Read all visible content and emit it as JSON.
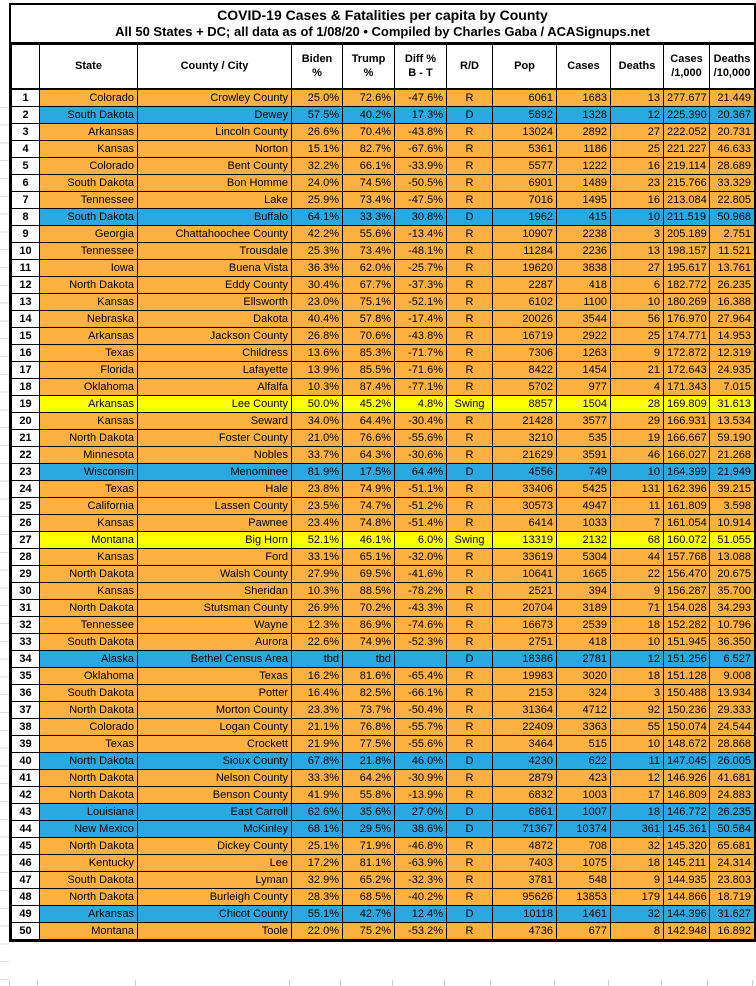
{
  "title": "COVID-19 Cases & Fatalities per capita by County",
  "subtitle": "All 50 States + DC; all data as of 1/08/20  • Compiled by Charles Gaba / ACASignups.net",
  "colors": {
    "republican": "#FBB040",
    "democrat": "#2AA9E0",
    "swing": "#FFFF00",
    "border": "#000000",
    "page": "#FFFFFF"
  },
  "columns": [
    {
      "id": "rank",
      "lines": [
        ""
      ]
    },
    {
      "id": "state",
      "lines": [
        "State"
      ]
    },
    {
      "id": "county",
      "lines": [
        "County / City"
      ]
    },
    {
      "id": "biden",
      "lines": [
        "Biden",
        "%"
      ]
    },
    {
      "id": "trump",
      "lines": [
        "Trump",
        "%"
      ]
    },
    {
      "id": "diff",
      "lines": [
        "Diff %",
        "B - T"
      ]
    },
    {
      "id": "rd",
      "lines": [
        "R/D"
      ]
    },
    {
      "id": "pop",
      "lines": [
        "Pop"
      ]
    },
    {
      "id": "cases",
      "lines": [
        "Cases"
      ]
    },
    {
      "id": "deaths",
      "lines": [
        "Deaths"
      ]
    },
    {
      "id": "c1000",
      "lines": [
        "Cases",
        "/1,000"
      ]
    },
    {
      "id": "d10000",
      "lines": [
        "Deaths",
        "/10,000"
      ]
    }
  ],
  "row_fields": [
    "rank",
    "state",
    "county_city",
    "biden_pct",
    "trump_pct",
    "diff_pct_b_t",
    "r_d",
    "pop",
    "cases",
    "deaths",
    "cases_per_1000",
    "deaths_per_10000"
  ],
  "rows": [
    [
      1,
      "Colorado",
      "Crowley County",
      "25.0%",
      "72.6%",
      "-47.6%",
      "R",
      "6061",
      "1683",
      "13",
      "277.677",
      "21.449"
    ],
    [
      2,
      "South Dakota",
      "Dewey",
      "57.5%",
      "40.2%",
      "17.3%",
      "D",
      "5892",
      "1328",
      "12",
      "225.390",
      "20.367"
    ],
    [
      3,
      "Arkansas",
      "Lincoln County",
      "26.6%",
      "70.4%",
      "-43.8%",
      "R",
      "13024",
      "2892",
      "27",
      "222.052",
      "20.731"
    ],
    [
      4,
      "Kansas",
      "Norton",
      "15.1%",
      "82.7%",
      "-67.6%",
      "R",
      "5361",
      "1186",
      "25",
      "221.227",
      "46.633"
    ],
    [
      5,
      "Colorado",
      "Bent County",
      "32.2%",
      "66.1%",
      "-33.9%",
      "R",
      "5577",
      "1222",
      "16",
      "219.114",
      "28.689"
    ],
    [
      6,
      "South Dakota",
      "Bon Homme",
      "24.0%",
      "74.5%",
      "-50.5%",
      "R",
      "6901",
      "1489",
      "23",
      "215.766",
      "33.329"
    ],
    [
      7,
      "Tennessee",
      "Lake",
      "25.9%",
      "73.4%",
      "-47.5%",
      "R",
      "7016",
      "1495",
      "16",
      "213.084",
      "22.805"
    ],
    [
      8,
      "South Dakota",
      "Buffalo",
      "64.1%",
      "33.3%",
      "30.8%",
      "D",
      "1962",
      "415",
      "10",
      "211.519",
      "50.968"
    ],
    [
      9,
      "Georgia",
      "Chattahoochee County",
      "42.2%",
      "55.6%",
      "-13.4%",
      "R",
      "10907",
      "2238",
      "3",
      "205.189",
      "2.751"
    ],
    [
      10,
      "Tennessee",
      "Trousdale",
      "25.3%",
      "73.4%",
      "-48.1%",
      "R",
      "11284",
      "2236",
      "13",
      "198.157",
      "11.521"
    ],
    [
      11,
      "Iowa",
      "Buena Vista",
      "36.3%",
      "62.0%",
      "-25.7%",
      "R",
      "19620",
      "3838",
      "27",
      "195.617",
      "13.761"
    ],
    [
      12,
      "North Dakota",
      "Eddy County",
      "30.4%",
      "67.7%",
      "-37.3%",
      "R",
      "2287",
      "418",
      "6",
      "182.772",
      "26.235"
    ],
    [
      13,
      "Kansas",
      "Ellsworth",
      "23.0%",
      "75.1%",
      "-52.1%",
      "R",
      "6102",
      "1100",
      "10",
      "180.269",
      "16.388"
    ],
    [
      14,
      "Nebraska",
      "Dakota",
      "40.4%",
      "57.8%",
      "-17.4%",
      "R",
      "20026",
      "3544",
      "56",
      "176.970",
      "27.964"
    ],
    [
      15,
      "Arkansas",
      "Jackson County",
      "26.8%",
      "70.6%",
      "-43.8%",
      "R",
      "16719",
      "2922",
      "25",
      "174.771",
      "14.953"
    ],
    [
      16,
      "Texas",
      "Childress",
      "13.6%",
      "85.3%",
      "-71.7%",
      "R",
      "7306",
      "1263",
      "9",
      "172.872",
      "12.319"
    ],
    [
      17,
      "Florida",
      "Lafayette",
      "13.9%",
      "85.5%",
      "-71.6%",
      "R",
      "8422",
      "1454",
      "21",
      "172.643",
      "24.935"
    ],
    [
      18,
      "Oklahoma",
      "Alfalfa",
      "10.3%",
      "87.4%",
      "-77.1%",
      "R",
      "5702",
      "977",
      "4",
      "171.343",
      "7.015"
    ],
    [
      19,
      "Arkansas",
      "Lee County",
      "50.0%",
      "45.2%",
      "4.8%",
      "Swing",
      "8857",
      "1504",
      "28",
      "169.809",
      "31.613"
    ],
    [
      20,
      "Kansas",
      "Seward",
      "34.0%",
      "64.4%",
      "-30.4%",
      "R",
      "21428",
      "3577",
      "29",
      "166.931",
      "13.534"
    ],
    [
      21,
      "North Dakota",
      "Foster County",
      "21.0%",
      "76.6%",
      "-55.6%",
      "R",
      "3210",
      "535",
      "19",
      "166.667",
      "59.190"
    ],
    [
      22,
      "Minnesota",
      "Nobles",
      "33.7%",
      "64.3%",
      "-30.6%",
      "R",
      "21629",
      "3591",
      "46",
      "166.027",
      "21.268"
    ],
    [
      23,
      "Wisconsin",
      "Menominee",
      "81.9%",
      "17.5%",
      "64.4%",
      "D",
      "4556",
      "749",
      "10",
      "164.399",
      "21.949"
    ],
    [
      24,
      "Texas",
      "Hale",
      "23.8%",
      "74.9%",
      "-51.1%",
      "R",
      "33406",
      "5425",
      "131",
      "162.396",
      "39.215"
    ],
    [
      25,
      "California",
      "Lassen County",
      "23.5%",
      "74.7%",
      "-51.2%",
      "R",
      "30573",
      "4947",
      "11",
      "161.809",
      "3.598"
    ],
    [
      26,
      "Kansas",
      "Pawnee",
      "23.4%",
      "74.8%",
      "-51.4%",
      "R",
      "6414",
      "1033",
      "7",
      "161.054",
      "10.914"
    ],
    [
      27,
      "Montana",
      "Big Horn",
      "52.1%",
      "46.1%",
      "6.0%",
      "Swing",
      "13319",
      "2132",
      "68",
      "160.072",
      "51.055"
    ],
    [
      28,
      "Kansas",
      "Ford",
      "33.1%",
      "65.1%",
      "-32.0%",
      "R",
      "33619",
      "5304",
      "44",
      "157.768",
      "13.088"
    ],
    [
      29,
      "North Dakota",
      "Walsh County",
      "27.9%",
      "69.5%",
      "-41.6%",
      "R",
      "10641",
      "1665",
      "22",
      "156.470",
      "20.675"
    ],
    [
      30,
      "Kansas",
      "Sheridan",
      "10.3%",
      "88.5%",
      "-78.2%",
      "R",
      "2521",
      "394",
      "9",
      "156.287",
      "35.700"
    ],
    [
      31,
      "North Dakota",
      "Stutsman County",
      "26.9%",
      "70.2%",
      "-43.3%",
      "R",
      "20704",
      "3189",
      "71",
      "154.028",
      "34.293"
    ],
    [
      32,
      "Tennessee",
      "Wayne",
      "12.3%",
      "86.9%",
      "-74.6%",
      "R",
      "16673",
      "2539",
      "18",
      "152.282",
      "10.796"
    ],
    [
      33,
      "South Dakota",
      "Aurora",
      "22.6%",
      "74.9%",
      "-52.3%",
      "R",
      "2751",
      "418",
      "10",
      "151.945",
      "36.350"
    ],
    [
      34,
      "Alaska",
      "Bethel Census Area",
      "tbd",
      "tbd",
      "",
      "D",
      "18386",
      "2781",
      "12",
      "151.256",
      "6.527"
    ],
    [
      35,
      "Oklahoma",
      "Texas",
      "16.2%",
      "81.6%",
      "-65.4%",
      "R",
      "19983",
      "3020",
      "18",
      "151.128",
      "9.008"
    ],
    [
      36,
      "South Dakota",
      "Potter",
      "16.4%",
      "82.5%",
      "-66.1%",
      "R",
      "2153",
      "324",
      "3",
      "150.488",
      "13.934"
    ],
    [
      37,
      "North Dakota",
      "Morton County",
      "23.3%",
      "73.7%",
      "-50.4%",
      "R",
      "31364",
      "4712",
      "92",
      "150.236",
      "29.333"
    ],
    [
      38,
      "Colorado",
      "Logan County",
      "21.1%",
      "76.8%",
      "-55.7%",
      "R",
      "22409",
      "3363",
      "55",
      "150.074",
      "24.544"
    ],
    [
      39,
      "Texas",
      "Crockett",
      "21.9%",
      "77.5%",
      "-55.6%",
      "R",
      "3464",
      "515",
      "10",
      "148.672",
      "28.868"
    ],
    [
      40,
      "North Dakota",
      "Sioux County",
      "67.8%",
      "21.8%",
      "46.0%",
      "D",
      "4230",
      "622",
      "11",
      "147.045",
      "26.005"
    ],
    [
      41,
      "North Dakota",
      "Nelson County",
      "33.3%",
      "64.2%",
      "-30.9%",
      "R",
      "2879",
      "423",
      "12",
      "146.926",
      "41.681"
    ],
    [
      42,
      "North Dakota",
      "Benson County",
      "41.9%",
      "55.8%",
      "-13.9%",
      "R",
      "6832",
      "1003",
      "17",
      "146.809",
      "24.883"
    ],
    [
      43,
      "Louisiana",
      "East Carroll",
      "62.6%",
      "35.6%",
      "27.0%",
      "D",
      "6861",
      "1007",
      "18",
      "146.772",
      "26.235"
    ],
    [
      44,
      "New Mexico",
      "McKinley",
      "68.1%",
      "29.5%",
      "38.6%",
      "D",
      "71367",
      "10374",
      "361",
      "145.361",
      "50.584"
    ],
    [
      45,
      "North Dakota",
      "Dickey County",
      "25.1%",
      "71.9%",
      "-46.8%",
      "R",
      "4872",
      "708",
      "32",
      "145.320",
      "65.681"
    ],
    [
      46,
      "Kentucky",
      "Lee",
      "17.2%",
      "81.1%",
      "-63.9%",
      "R",
      "7403",
      "1075",
      "18",
      "145.211",
      "24.314"
    ],
    [
      47,
      "South Dakota",
      "Lyman",
      "32.9%",
      "65.2%",
      "-32.3%",
      "R",
      "3781",
      "548",
      "9",
      "144.935",
      "23.803"
    ],
    [
      48,
      "North Dakota",
      "Burleigh County",
      "28.3%",
      "68.5%",
      "-40.2%",
      "R",
      "95626",
      "13853",
      "179",
      "144.866",
      "18.719"
    ],
    [
      49,
      "Arkansas",
      "Chicot County",
      "55.1%",
      "42.7%",
      "12.4%",
      "D",
      "10118",
      "1461",
      "32",
      "144.396",
      "31.627"
    ],
    [
      50,
      "Montana",
      "Toole",
      "22.0%",
      "75.2%",
      "-53.2%",
      "R",
      "4736",
      "677",
      "8",
      "142.948",
      "16.892"
    ]
  ]
}
